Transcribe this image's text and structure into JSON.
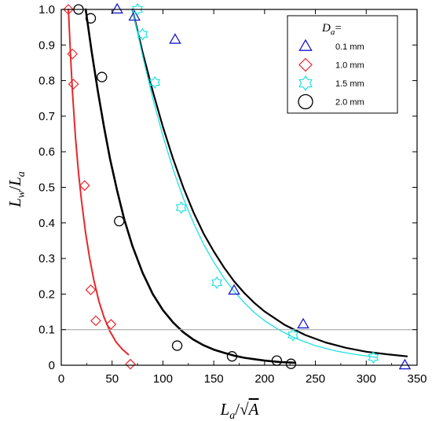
{
  "chart_data": {
    "type": "scatter",
    "xlabel": "L_a/√A",
    "ylabel": "L_w/L_a",
    "xlim": [
      0,
      350
    ],
    "ylim": [
      0,
      1.0
    ],
    "x_ticks": [
      0,
      50,
      100,
      150,
      200,
      250,
      300,
      350
    ],
    "y_ticks": [
      0,
      0.1,
      0.2,
      0.3,
      0.4,
      0.5,
      0.6,
      0.7,
      0.8,
      0.9,
      1.0
    ],
    "x_tick_labels": [
      "0",
      "50",
      "100",
      "150",
      "200",
      "250",
      "300",
      "350"
    ],
    "y_tick_labels": [
      "0",
      "0.1",
      "0.2",
      "0.3",
      "0.4",
      "0.5",
      "0.6",
      "0.7",
      "0.8",
      "0.9",
      "1.0"
    ],
    "reference_line_y": 0.1,
    "grid": false,
    "legend": {
      "title": "D_a=",
      "placement": "top-right",
      "entries": [
        "0.1 mm",
        "1.0 mm",
        "1.5 mm",
        "2.0 mm"
      ]
    },
    "series": [
      {
        "name": "0.1 mm",
        "marker": "triangle",
        "color": "#1a1acc",
        "points": [
          [
            55,
            1.0
          ],
          [
            72,
            0.98
          ],
          [
            112,
            0.915
          ],
          [
            170,
            0.21
          ],
          [
            238,
            0.115
          ],
          [
            338,
            0.0
          ]
        ],
        "fit_curve": {
          "color": "#000000",
          "width": 2.2,
          "points": [
            [
              70,
              1.0
            ],
            [
              80,
              0.88
            ],
            [
              90,
              0.77
            ],
            [
              100,
              0.67
            ],
            [
              110,
              0.58
            ],
            [
              120,
              0.5
            ],
            [
              130,
              0.43
            ],
            [
              140,
              0.37
            ],
            [
              150,
              0.32
            ],
            [
              160,
              0.275
            ],
            [
              170,
              0.236
            ],
            [
              180,
              0.203
            ],
            [
              190,
              0.175
            ],
            [
              200,
              0.151
            ],
            [
              220,
              0.113
            ],
            [
              240,
              0.085
            ],
            [
              260,
              0.064
            ],
            [
              280,
              0.049
            ],
            [
              300,
              0.038
            ],
            [
              320,
              0.031
            ],
            [
              340,
              0.025
            ]
          ]
        }
      },
      {
        "name": "1.0 mm",
        "marker": "diamond",
        "color": "#e8262a",
        "points": [
          [
            7,
            1.0
          ],
          [
            11,
            0.875
          ],
          [
            12,
            0.79
          ],
          [
            23,
            0.505
          ],
          [
            29,
            0.212
          ],
          [
            34,
            0.125
          ],
          [
            49,
            0.115
          ],
          [
            68,
            0.003
          ]
        ],
        "fit_curve": {
          "color": "#e8262a",
          "width": 2.0,
          "points": [
            [
              7,
              1.0
            ],
            [
              9,
              0.88
            ],
            [
              11,
              0.77
            ],
            [
              14,
              0.64
            ],
            [
              17,
              0.54
            ],
            [
              20,
              0.46
            ],
            [
              24,
              0.37
            ],
            [
              28,
              0.3
            ],
            [
              32,
              0.24
            ],
            [
              37,
              0.18
            ],
            [
              42,
              0.135
            ],
            [
              48,
              0.095
            ],
            [
              54,
              0.065
            ],
            [
              60,
              0.045
            ],
            [
              66,
              0.03
            ]
          ]
        }
      },
      {
        "name": "1.5 mm",
        "marker": "star",
        "color": "#22e0e0",
        "points": [
          [
            75,
            1.0
          ],
          [
            80,
            0.93
          ],
          [
            92,
            0.795
          ],
          [
            118,
            0.443
          ],
          [
            153,
            0.232
          ],
          [
            228,
            0.085
          ],
          [
            307,
            0.022
          ]
        ],
        "fit_curve": {
          "color": "#22e0e0",
          "width": 1.3,
          "points": [
            [
              70,
              1.0
            ],
            [
              80,
              0.87
            ],
            [
              90,
              0.75
            ],
            [
              100,
              0.645
            ],
            [
              110,
              0.55
            ],
            [
              120,
              0.47
            ],
            [
              130,
              0.4
            ],
            [
              140,
              0.34
            ],
            [
              150,
              0.29
            ],
            [
              160,
              0.245
            ],
            [
              170,
              0.208
            ],
            [
              180,
              0.176
            ],
            [
              190,
              0.148
            ],
            [
              200,
              0.125
            ],
            [
              215,
              0.098
            ],
            [
              230,
              0.076
            ],
            [
              250,
              0.055
            ],
            [
              270,
              0.04
            ],
            [
              290,
              0.03
            ],
            [
              310,
              0.022
            ]
          ]
        }
      },
      {
        "name": "2.0 mm",
        "marker": "circle",
        "color": "#000000",
        "points": [
          [
            17,
            1.0
          ],
          [
            29,
            0.975
          ],
          [
            40,
            0.81
          ],
          [
            57,
            0.405
          ],
          [
            114,
            0.055
          ],
          [
            168,
            0.025
          ],
          [
            212,
            0.013
          ],
          [
            226,
            0.004
          ]
        ],
        "fit_curve": {
          "color": "#000000",
          "width": 2.6,
          "points": [
            [
              24,
              1.0
            ],
            [
              30,
              0.88
            ],
            [
              36,
              0.77
            ],
            [
              42,
              0.67
            ],
            [
              48,
              0.58
            ],
            [
              55,
              0.49
            ],
            [
              62,
              0.41
            ],
            [
              70,
              0.335
            ],
            [
              80,
              0.26
            ],
            [
              90,
              0.2
            ],
            [
              100,
              0.155
            ],
            [
              110,
              0.12
            ],
            [
              120,
              0.093
            ],
            [
              130,
              0.072
            ],
            [
              140,
              0.056
            ],
            [
              150,
              0.044
            ],
            [
              160,
              0.035
            ],
            [
              170,
              0.027
            ],
            [
              180,
              0.021
            ],
            [
              190,
              0.017
            ],
            [
              200,
              0.013
            ],
            [
              215,
              0.009
            ],
            [
              230,
              0.007
            ]
          ]
        }
      }
    ]
  }
}
